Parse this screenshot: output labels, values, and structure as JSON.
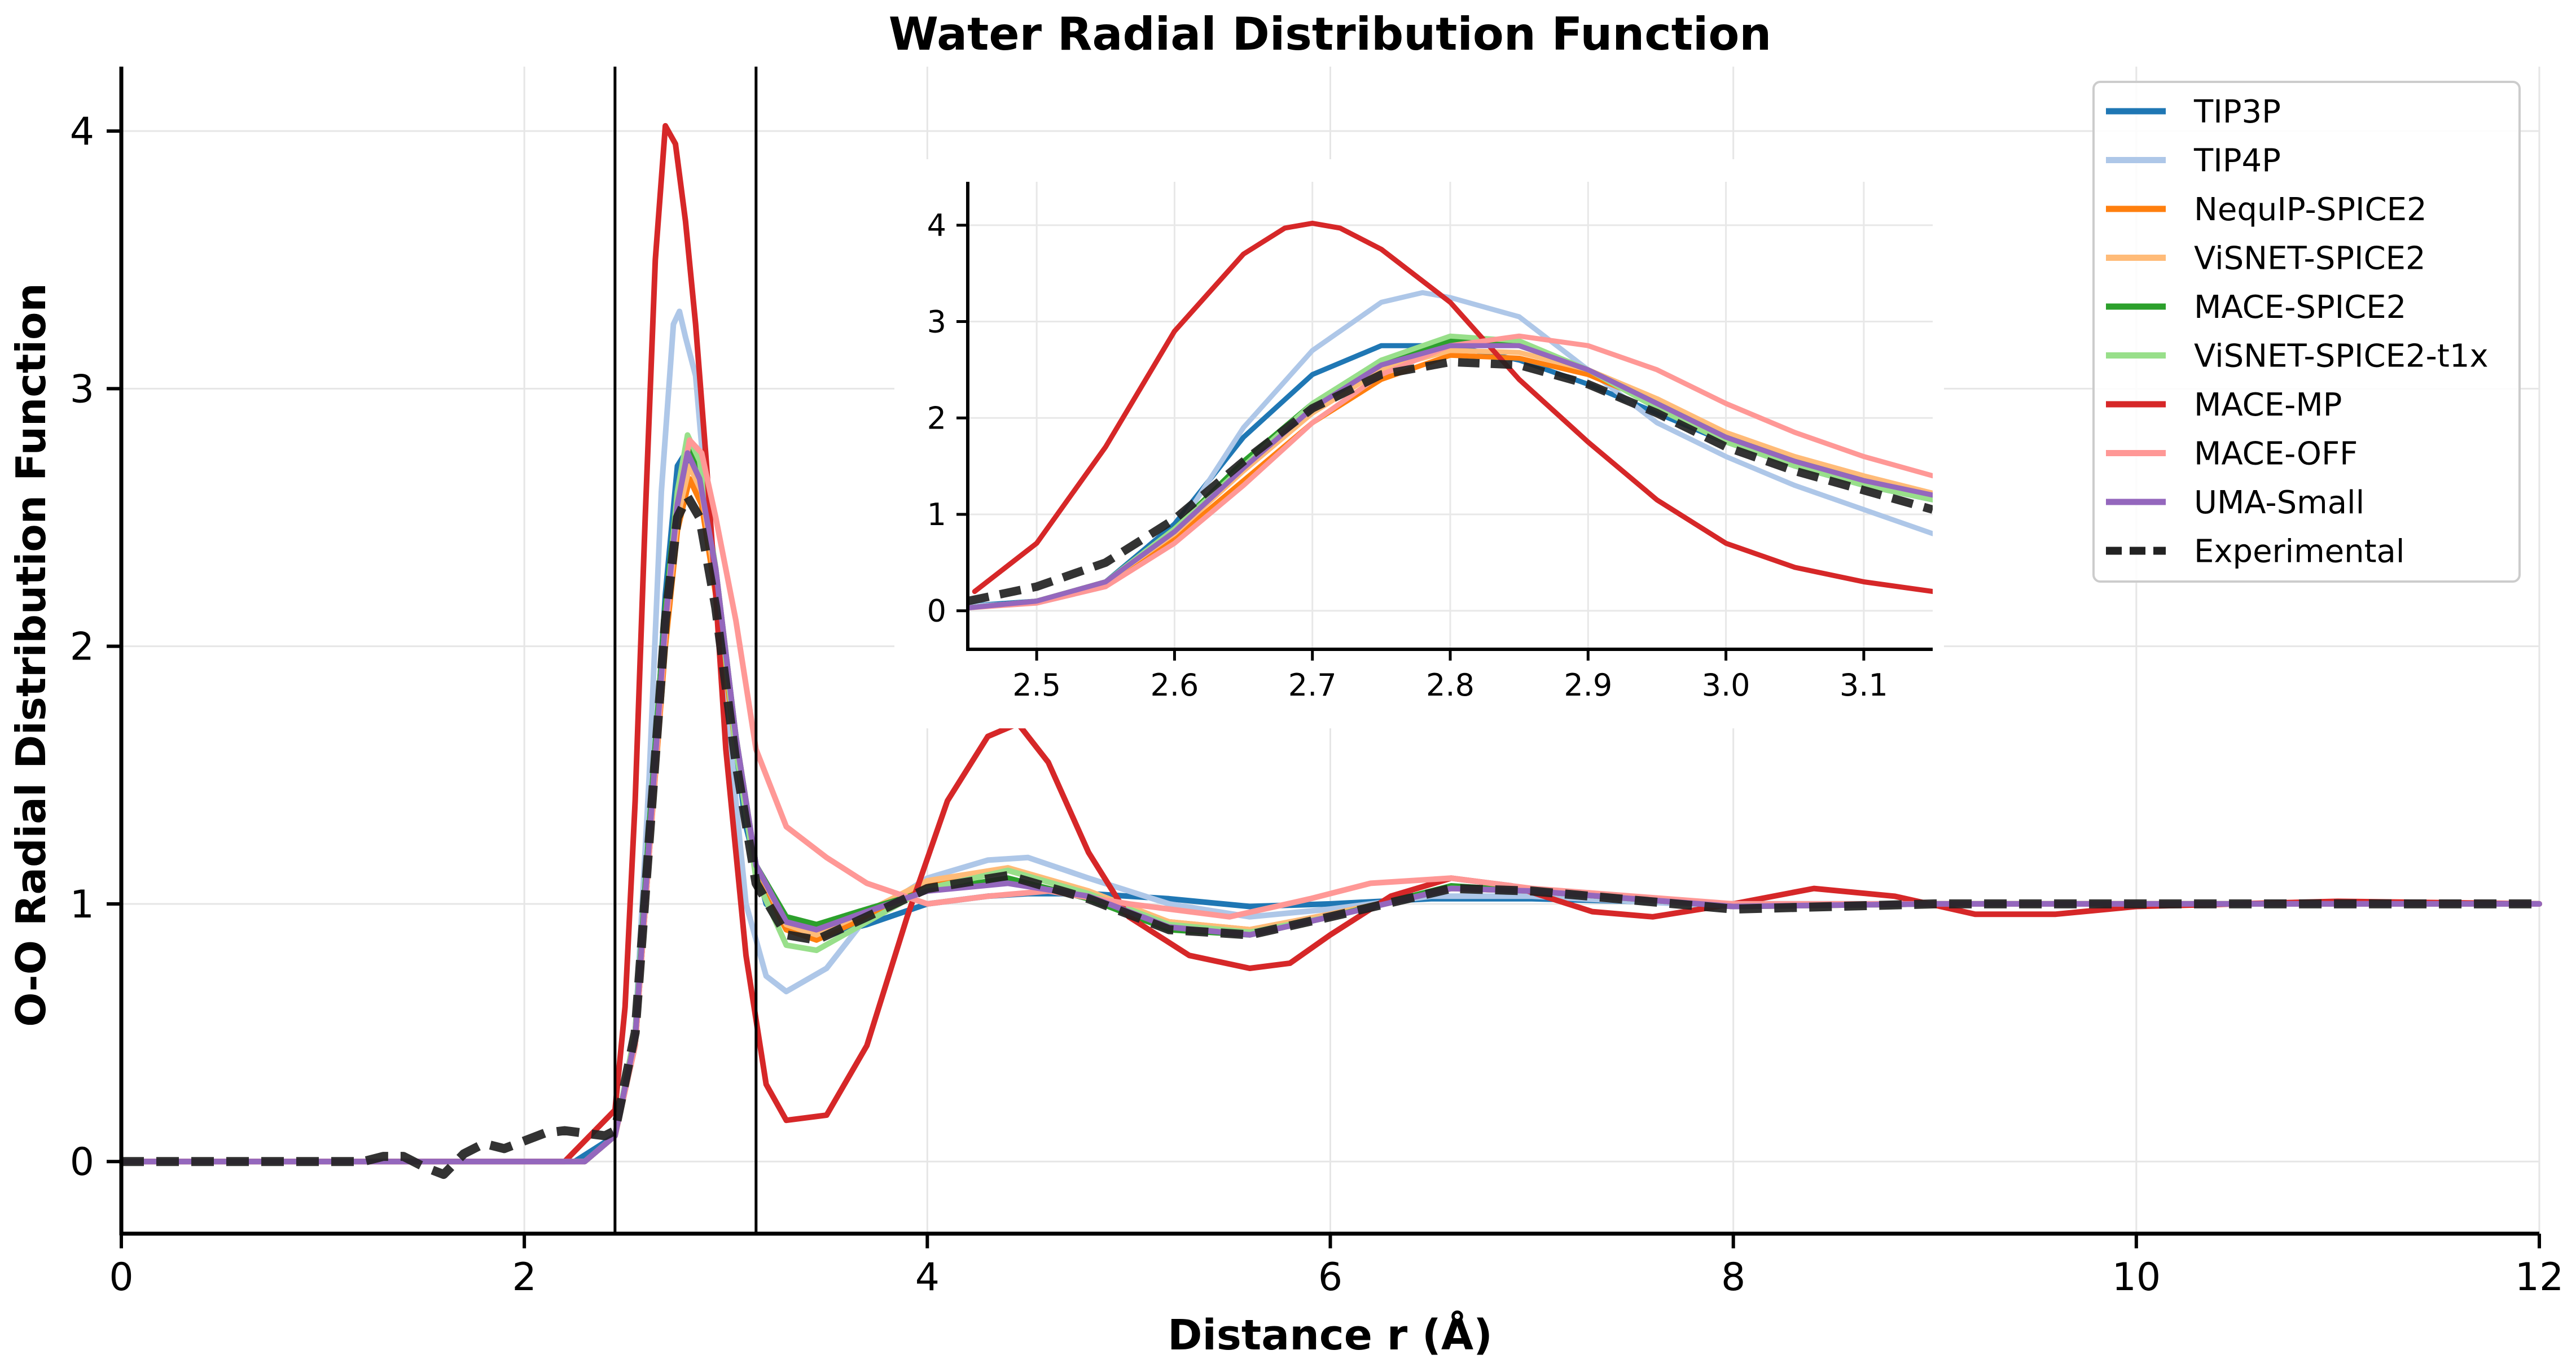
{
  "chart_data": {
    "type": "line",
    "title": "Water Radial Distribution Function",
    "xlabel": "Distance r (Å)",
    "ylabel": "O-O Radial Distribution Function",
    "xlim": [
      0,
      12
    ],
    "ylim": [
      -0.28,
      4.25
    ],
    "xticks": [
      0,
      2,
      4,
      6,
      8,
      10,
      12
    ],
    "xtick_labels": [
      "0",
      "2",
      "4",
      "6",
      "8",
      "10",
      "12"
    ],
    "yticks": [
      0,
      1,
      2,
      3,
      4
    ],
    "ytick_labels": [
      "0",
      "1",
      "2",
      "3",
      "4"
    ],
    "grid": true,
    "legend_position": "top-right",
    "vertical_lines": [
      2.45,
      3.15
    ],
    "series": [
      {
        "name": "TIP3P",
        "color": "#1f77b4",
        "dashed": false,
        "x": [
          0,
          2.25,
          2.45,
          2.55,
          2.62,
          2.7,
          2.76,
          2.8,
          2.86,
          2.92,
          3.0,
          3.1,
          3.2,
          3.35,
          3.5,
          3.7,
          4.0,
          4.3,
          4.5,
          4.8,
          5.2,
          5.6,
          6.0,
          6.5,
          7.0,
          8.0,
          9.0,
          10.0,
          11.0,
          12.0
        ],
        "y": [
          0,
          0,
          0.1,
          0.45,
          1.2,
          2.2,
          2.7,
          2.75,
          2.65,
          2.4,
          1.9,
          1.3,
          1.0,
          0.9,
          0.88,
          0.92,
          1.0,
          1.03,
          1.04,
          1.04,
          1.02,
          0.99,
          1.0,
          1.02,
          1.02,
          1.0,
          1.0,
          1.0,
          1.0,
          1.0
        ]
      },
      {
        "name": "TIP4P",
        "color": "#aec7e8",
        "dashed": false,
        "x": [
          0,
          2.3,
          2.45,
          2.55,
          2.62,
          2.68,
          2.74,
          2.77,
          2.8,
          2.85,
          2.9,
          3.0,
          3.1,
          3.2,
          3.3,
          3.5,
          3.7,
          4.0,
          4.3,
          4.5,
          4.8,
          5.2,
          5.6,
          6.0,
          6.5,
          7.0,
          8.0,
          9.0,
          10.0,
          11.0,
          12.0
        ],
        "y": [
          0,
          0,
          0.1,
          0.5,
          1.5,
          2.6,
          3.25,
          3.3,
          3.2,
          3.05,
          2.6,
          1.8,
          1.0,
          0.72,
          0.66,
          0.75,
          0.95,
          1.1,
          1.17,
          1.18,
          1.1,
          1.0,
          0.95,
          0.98,
          1.03,
          1.03,
          0.99,
          1.0,
          1.0,
          1.0,
          1.0
        ]
      },
      {
        "name": "NequIP-SPICE2",
        "color": "#ff7f0e",
        "dashed": false,
        "x": [
          0,
          2.3,
          2.45,
          2.55,
          2.62,
          2.7,
          2.76,
          2.82,
          2.88,
          2.95,
          3.05,
          3.15,
          3.3,
          3.45,
          3.7,
          4.0,
          4.4,
          4.8,
          5.2,
          5.6,
          6.0,
          6.6,
          7.0,
          8.0,
          9.0,
          10.0,
          11.0,
          12.0
        ],
        "y": [
          0,
          0,
          0.1,
          0.45,
          1.2,
          2.0,
          2.45,
          2.65,
          2.55,
          2.2,
          1.6,
          1.12,
          0.9,
          0.86,
          0.95,
          1.08,
          1.13,
          1.04,
          0.93,
          0.9,
          0.96,
          1.06,
          1.05,
          0.99,
          1.0,
          1.0,
          1.0,
          1.0
        ]
      },
      {
        "name": "ViSNET-SPICE2",
        "color": "#ffbb78",
        "dashed": false,
        "x": [
          0,
          2.3,
          2.45,
          2.55,
          2.62,
          2.7,
          2.76,
          2.82,
          2.88,
          2.95,
          3.05,
          3.15,
          3.3,
          3.45,
          3.7,
          4.0,
          4.4,
          4.8,
          5.2,
          5.6,
          6.0,
          6.6,
          7.0,
          8.0,
          9.0,
          10.0,
          11.0,
          12.0
        ],
        "y": [
          0,
          0,
          0.1,
          0.45,
          1.2,
          2.05,
          2.5,
          2.7,
          2.6,
          2.25,
          1.65,
          1.15,
          0.92,
          0.88,
          0.97,
          1.09,
          1.14,
          1.05,
          0.93,
          0.9,
          0.96,
          1.06,
          1.05,
          0.99,
          1.0,
          1.0,
          1.0,
          1.0
        ]
      },
      {
        "name": "MACE-SPICE2",
        "color": "#2ca02c",
        "dashed": false,
        "x": [
          0,
          2.3,
          2.45,
          2.55,
          2.62,
          2.7,
          2.76,
          2.81,
          2.87,
          2.95,
          3.05,
          3.15,
          3.3,
          3.45,
          3.7,
          4.0,
          4.4,
          4.8,
          5.2,
          5.6,
          6.0,
          6.6,
          7.0,
          8.0,
          9.0,
          10.0,
          11.0,
          12.0
        ],
        "y": [
          0,
          0,
          0.1,
          0.5,
          1.3,
          2.15,
          2.6,
          2.8,
          2.7,
          2.3,
          1.65,
          1.15,
          0.95,
          0.92,
          0.98,
          1.05,
          1.1,
          1.02,
          0.9,
          0.88,
          0.95,
          1.07,
          1.05,
          0.99,
          1.0,
          1.0,
          1.0,
          1.0
        ]
      },
      {
        "name": "ViSNET-SPICE2-t1x",
        "color": "#98df8a",
        "dashed": false,
        "x": [
          0,
          2.3,
          2.45,
          2.55,
          2.62,
          2.7,
          2.76,
          2.81,
          2.87,
          2.95,
          3.05,
          3.15,
          3.3,
          3.45,
          3.7,
          4.0,
          4.4,
          4.8,
          5.2,
          5.6,
          6.0,
          6.6,
          7.0,
          8.0,
          9.0,
          10.0,
          11.0,
          12.0
        ],
        "y": [
          0,
          0,
          0.1,
          0.5,
          1.25,
          2.1,
          2.6,
          2.82,
          2.72,
          2.3,
          1.6,
          1.1,
          0.84,
          0.82,
          0.93,
          1.06,
          1.13,
          1.04,
          0.92,
          0.89,
          0.95,
          1.06,
          1.05,
          0.99,
          1.0,
          1.0,
          1.0,
          1.0
        ]
      },
      {
        "name": "MACE-MP",
        "color": "#d62728",
        "dashed": false,
        "x": [
          0,
          2.2,
          2.45,
          2.5,
          2.55,
          2.6,
          2.65,
          2.7,
          2.75,
          2.8,
          2.85,
          2.9,
          2.95,
          3.0,
          3.1,
          3.2,
          3.3,
          3.5,
          3.7,
          3.9,
          4.1,
          4.3,
          4.45,
          4.6,
          4.8,
          5.0,
          5.3,
          5.6,
          5.8,
          6.0,
          6.3,
          6.6,
          6.9,
          7.3,
          7.6,
          8.0,
          8.4,
          8.8,
          9.2,
          9.6,
          10.0,
          10.5,
          11.0,
          12.0
        ],
        "y": [
          0,
          0,
          0.2,
          0.6,
          1.4,
          2.5,
          3.5,
          4.02,
          3.95,
          3.65,
          3.25,
          2.75,
          2.2,
          1.6,
          0.8,
          0.3,
          0.16,
          0.18,
          0.45,
          0.95,
          1.4,
          1.65,
          1.7,
          1.55,
          1.2,
          0.95,
          0.8,
          0.75,
          0.77,
          0.88,
          1.03,
          1.1,
          1.07,
          0.97,
          0.95,
          1.0,
          1.06,
          1.03,
          0.96,
          0.96,
          0.99,
          1.0,
          1.01,
          1.0
        ]
      },
      {
        "name": "MACE-OFF",
        "color": "#ff9896",
        "dashed": false,
        "x": [
          0,
          2.3,
          2.45,
          2.55,
          2.62,
          2.7,
          2.76,
          2.82,
          2.88,
          2.95,
          3.05,
          3.15,
          3.3,
          3.5,
          3.7,
          4.0,
          4.3,
          4.6,
          5.0,
          5.5,
          5.9,
          6.2,
          6.6,
          7.0,
          8.0,
          9.0,
          10.0,
          11.0,
          12.0
        ],
        "y": [
          0,
          0,
          0.1,
          0.45,
          1.2,
          2.05,
          2.55,
          2.8,
          2.75,
          2.5,
          2.1,
          1.6,
          1.3,
          1.18,
          1.08,
          1.0,
          1.03,
          1.05,
          1.0,
          0.95,
          1.02,
          1.08,
          1.1,
          1.06,
          1.0,
          1.0,
          1.0,
          1.0,
          1.0
        ]
      },
      {
        "name": "UMA-Small",
        "color": "#9467bd",
        "dashed": false,
        "x": [
          0,
          2.3,
          2.45,
          2.55,
          2.62,
          2.7,
          2.76,
          2.81,
          2.87,
          2.95,
          3.05,
          3.15,
          3.3,
          3.45,
          3.7,
          4.0,
          4.4,
          4.8,
          5.2,
          5.6,
          6.0,
          6.6,
          7.0,
          8.0,
          9.0,
          10.0,
          11.0,
          12.0
        ],
        "y": [
          0,
          0,
          0.1,
          0.48,
          1.25,
          2.1,
          2.55,
          2.75,
          2.65,
          2.3,
          1.65,
          1.15,
          0.93,
          0.9,
          0.97,
          1.05,
          1.08,
          1.03,
          0.91,
          0.88,
          0.95,
          1.06,
          1.05,
          0.99,
          1.0,
          1.0,
          1.0,
          1.0
        ]
      },
      {
        "name": "Experimental",
        "color": "#222222",
        "dashed": true,
        "x": [
          0,
          1.2,
          1.3,
          1.4,
          1.5,
          1.6,
          1.7,
          1.8,
          1.9,
          2.0,
          2.1,
          2.2,
          2.3,
          2.4,
          2.45,
          2.55,
          2.62,
          2.7,
          2.76,
          2.81,
          2.87,
          2.95,
          3.05,
          3.15,
          3.3,
          3.45,
          3.7,
          4.0,
          4.4,
          4.8,
          5.2,
          5.6,
          6.0,
          6.6,
          7.0,
          8.0,
          9.0,
          10.0,
          11.0,
          12.0
        ],
        "y": [
          0,
          0,
          0.02,
          0.02,
          -0.02,
          -0.05,
          0.03,
          0.07,
          0.05,
          0.08,
          0.11,
          0.12,
          0.11,
          0.1,
          0.12,
          0.5,
          1.25,
          2.1,
          2.5,
          2.58,
          2.5,
          2.15,
          1.55,
          1.08,
          0.88,
          0.86,
          0.95,
          1.06,
          1.11,
          1.02,
          0.9,
          0.88,
          0.95,
          1.06,
          1.05,
          0.98,
          1.0,
          1.0,
          1.0,
          1.0
        ]
      }
    ],
    "inset": {
      "xlim": [
        2.45,
        3.15
      ],
      "ylim": [
        -0.4,
        4.45
      ],
      "xticks": [
        2.5,
        2.6,
        2.7,
        2.8,
        2.9,
        3.0,
        3.1
      ],
      "xtick_labels": [
        "2.5",
        "2.6",
        "2.7",
        "2.8",
        "2.9",
        "3.0",
        "3.1"
      ],
      "yticks": [
        0,
        1,
        2,
        3,
        4
      ],
      "ytick_labels": [
        "0",
        "1",
        "2",
        "3",
        "4"
      ],
      "series": [
        {
          "name": "TIP3P",
          "color": "#1f77b4",
          "dashed": false,
          "x": [
            2.45,
            2.5,
            2.55,
            2.6,
            2.65,
            2.7,
            2.75,
            2.8,
            2.85,
            2.9,
            2.95,
            3.0,
            3.05,
            3.1,
            3.15
          ],
          "y": [
            0.05,
            0.1,
            0.3,
            0.9,
            1.8,
            2.45,
            2.75,
            2.75,
            2.6,
            2.35,
            2.05,
            1.75,
            1.5,
            1.3,
            1.15
          ]
        },
        {
          "name": "TIP4P",
          "color": "#aec7e8",
          "dashed": false,
          "x": [
            2.45,
            2.5,
            2.55,
            2.6,
            2.65,
            2.7,
            2.75,
            2.78,
            2.8,
            2.85,
            2.9,
            2.95,
            3.0,
            3.05,
            3.1,
            3.15
          ],
          "y": [
            0.05,
            0.08,
            0.25,
            0.8,
            1.9,
            2.7,
            3.2,
            3.3,
            3.25,
            3.05,
            2.5,
            1.95,
            1.6,
            1.3,
            1.05,
            0.8
          ]
        },
        {
          "name": "NequIP-SPICE2",
          "color": "#ff7f0e",
          "dashed": false,
          "x": [
            2.45,
            2.5,
            2.55,
            2.6,
            2.65,
            2.7,
            2.75,
            2.8,
            2.85,
            2.9,
            2.95,
            3.0,
            3.05,
            3.1,
            3.15
          ],
          "y": [
            0.03,
            0.1,
            0.3,
            0.75,
            1.35,
            1.95,
            2.4,
            2.65,
            2.62,
            2.45,
            2.15,
            1.8,
            1.55,
            1.35,
            1.2
          ]
        },
        {
          "name": "ViSNET-SPICE2",
          "color": "#ffbb78",
          "dashed": false,
          "x": [
            2.45,
            2.5,
            2.55,
            2.6,
            2.65,
            2.7,
            2.75,
            2.8,
            2.85,
            2.9,
            2.95,
            3.0,
            3.05,
            3.1,
            3.15
          ],
          "y": [
            0.03,
            0.1,
            0.3,
            0.8,
            1.45,
            2.05,
            2.5,
            2.7,
            2.68,
            2.5,
            2.2,
            1.85,
            1.6,
            1.4,
            1.22
          ]
        },
        {
          "name": "MACE-SPICE2",
          "color": "#2ca02c",
          "dashed": false,
          "x": [
            2.45,
            2.5,
            2.55,
            2.6,
            2.65,
            2.7,
            2.75,
            2.8,
            2.85,
            2.9,
            2.95,
            3.0,
            3.05,
            3.1,
            3.15
          ],
          "y": [
            0.03,
            0.1,
            0.3,
            0.85,
            1.55,
            2.15,
            2.6,
            2.8,
            2.75,
            2.5,
            2.15,
            1.8,
            1.55,
            1.35,
            1.18
          ]
        },
        {
          "name": "ViSNET-SPICE2-t1x",
          "color": "#98df8a",
          "dashed": false,
          "x": [
            2.45,
            2.5,
            2.55,
            2.6,
            2.65,
            2.7,
            2.75,
            2.8,
            2.85,
            2.9,
            2.95,
            3.0,
            3.05,
            3.1,
            3.15
          ],
          "y": [
            0.03,
            0.1,
            0.3,
            0.85,
            1.5,
            2.15,
            2.6,
            2.85,
            2.8,
            2.5,
            2.1,
            1.75,
            1.5,
            1.3,
            1.15
          ]
        },
        {
          "name": "MACE-MP",
          "color": "#d62728",
          "dashed": false,
          "x": [
            2.455,
            2.5,
            2.55,
            2.6,
            2.65,
            2.68,
            2.7,
            2.72,
            2.75,
            2.8,
            2.85,
            2.9,
            2.95,
            3.0,
            3.05,
            3.1,
            3.15
          ],
          "y": [
            0.2,
            0.7,
            1.7,
            2.9,
            3.7,
            3.97,
            4.02,
            3.97,
            3.75,
            3.2,
            2.4,
            1.75,
            1.15,
            0.7,
            0.45,
            0.3,
            0.2
          ]
        },
        {
          "name": "MACE-OFF",
          "color": "#ff9896",
          "dashed": false,
          "x": [
            2.45,
            2.5,
            2.55,
            2.6,
            2.65,
            2.7,
            2.75,
            2.8,
            2.85,
            2.9,
            2.95,
            3.0,
            3.05,
            3.1,
            3.15
          ],
          "y": [
            0.03,
            0.08,
            0.25,
            0.7,
            1.3,
            1.95,
            2.45,
            2.75,
            2.85,
            2.75,
            2.5,
            2.15,
            1.85,
            1.6,
            1.4
          ]
        },
        {
          "name": "UMA-Small",
          "color": "#9467bd",
          "dashed": false,
          "x": [
            2.45,
            2.5,
            2.55,
            2.6,
            2.65,
            2.7,
            2.75,
            2.8,
            2.85,
            2.9,
            2.95,
            3.0,
            3.05,
            3.1,
            3.15
          ],
          "y": [
            0.03,
            0.1,
            0.3,
            0.82,
            1.48,
            2.1,
            2.55,
            2.75,
            2.75,
            2.5,
            2.15,
            1.8,
            1.55,
            1.35,
            1.2
          ]
        },
        {
          "name": "Experimental",
          "color": "#222222",
          "dashed": true,
          "x": [
            2.45,
            2.5,
            2.55,
            2.6,
            2.65,
            2.7,
            2.75,
            2.8,
            2.85,
            2.9,
            2.95,
            3.0,
            3.05,
            3.1,
            3.15
          ],
          "y": [
            0.1,
            0.25,
            0.5,
            0.95,
            1.55,
            2.1,
            2.45,
            2.58,
            2.55,
            2.35,
            2.05,
            1.7,
            1.45,
            1.25,
            1.05
          ]
        }
      ]
    }
  }
}
